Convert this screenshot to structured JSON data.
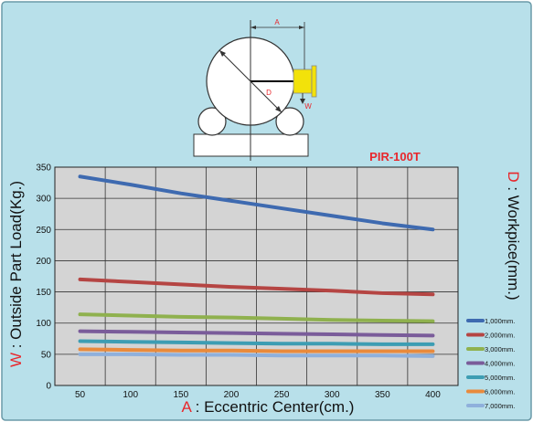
{
  "colors": {
    "panel_bg": "#b8e0ea",
    "panel_border": "#6a9aa8",
    "plot_bg": "#d4d4d4",
    "grid": "#333333",
    "accent_red": "#e8272c",
    "diagram_yellow": "#f2e20a"
  },
  "diagram": {
    "dim_a": "A",
    "dim_d": "D",
    "dim_w": "W"
  },
  "chart_data": {
    "type": "line",
    "title": "PIR-100T",
    "xlabel_prefix": "A",
    "xlabel_rest": " : Eccentric Center(cm.)",
    "ylabel_prefix": "W",
    "ylabel_rest": " : Outside Part Load(Kg.)",
    "right_label_prefix": "D",
    "right_label_rest": " : Workpice(mm.)",
    "xlim": [
      25,
      425
    ],
    "ylim": [
      0,
      350
    ],
    "x_ticks": [
      "50",
      "100",
      "150",
      "200",
      "250",
      "300",
      "350",
      "400"
    ],
    "y_ticks": [
      "0",
      "50",
      "100",
      "150",
      "200",
      "250",
      "300",
      "350"
    ],
    "grid": true,
    "legend_position": "bottom-right",
    "x": [
      50,
      100,
      150,
      200,
      250,
      300,
      350,
      400
    ],
    "series": [
      {
        "name": "1,000mm.",
        "color": "#3e6ab0",
        "values": [
          335,
          322,
          308,
          296,
          284,
          272,
          260,
          250
        ]
      },
      {
        "name": "2,000mm.",
        "color": "#b54543",
        "values": [
          170,
          166,
          162,
          158,
          155,
          152,
          148,
          146
        ]
      },
      {
        "name": "3,000mm.",
        "color": "#8fb14e",
        "values": [
          114,
          112,
          110,
          109,
          107,
          105,
          104,
          103
        ]
      },
      {
        "name": "4,000mm.",
        "color": "#7a5c9a",
        "values": [
          87,
          86,
          85,
          84,
          83,
          82,
          81,
          80
        ]
      },
      {
        "name": "5,000mm.",
        "color": "#3d9db3",
        "values": [
          71,
          70,
          69,
          68,
          67,
          67,
          66,
          66
        ]
      },
      {
        "name": "6,000mm.",
        "color": "#e98a3c",
        "values": [
          58,
          57,
          56,
          56,
          55,
          55,
          55,
          55
        ]
      },
      {
        "name": "7,000mm.",
        "color": "#8fb0dc",
        "values": [
          50,
          50,
          49,
          49,
          48,
          48,
          48,
          47
        ]
      }
    ]
  }
}
